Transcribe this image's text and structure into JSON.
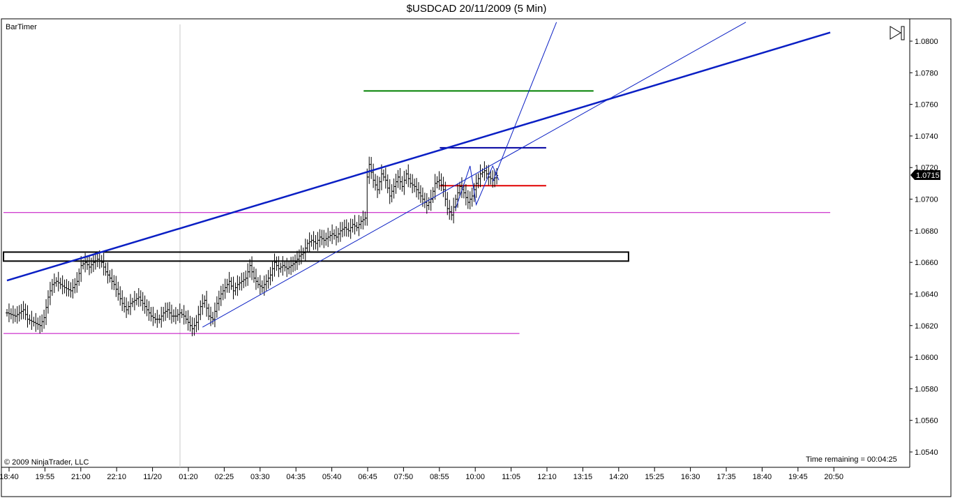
{
  "header": {
    "title": "$USDCAD  20/11/2009 (5 Min)"
  },
  "indicator": {
    "name": "BarTimer"
  },
  "footer": {
    "copyright": "© 2009 NinjaTrader, LLC",
    "time_remaining": "Time remaining = 00:04:25"
  },
  "colors": {
    "bar": "#000000",
    "trendline": "#0a1fc4",
    "support": "#c000c0",
    "green_level": "#008000",
    "blue_level": "#0000a0",
    "red_level": "#e00000",
    "box": "#000000",
    "grid": "#c8c8c8"
  },
  "chart_data": {
    "type": "ohlc",
    "title": "$USDCAD  20/11/2009 (5 Min)",
    "ylim": [
      1.053,
      1.0815
    ],
    "y_ticks": [
      "1.0540",
      "1.0560",
      "1.0580",
      "1.0600",
      "1.0620",
      "1.0640",
      "1.0660",
      "1.0680",
      "1.0700",
      "1.0720",
      "1.0740",
      "1.0760",
      "1.0780",
      "1.0800"
    ],
    "x_tick_labels": [
      "18:40",
      "19:55",
      "21:00",
      "22:10",
      "11/20",
      "01:20",
      "02:25",
      "03:30",
      "04:35",
      "05:40",
      "06:45",
      "07:50",
      "08:55",
      "10:00",
      "11:05",
      "12:10",
      "13:15",
      "14:20",
      "15:25",
      "16:30",
      "17:35",
      "18:40",
      "19:45",
      "20:50"
    ],
    "last_price": "1.0715",
    "close_path": [
      [
        0,
        1.0628
      ],
      [
        4,
        1.0626
      ],
      [
        8,
        1.063
      ],
      [
        10,
        1.0624
      ],
      [
        13,
        1.0622
      ],
      [
        16,
        1.062
      ],
      [
        18,
        1.0625
      ],
      [
        20,
        1.0638
      ],
      [
        22,
        1.0646
      ],
      [
        24,
        1.0648
      ],
      [
        26,
        1.0646
      ],
      [
        28,
        1.0644
      ],
      [
        31,
        1.0642
      ],
      [
        34,
        1.0648
      ],
      [
        36,
        1.0658
      ],
      [
        38,
        1.066
      ],
      [
        40,
        1.0657
      ],
      [
        42,
        1.066
      ],
      [
        44,
        1.0662
      ],
      [
        46,
        1.066
      ],
      [
        48,
        1.0654
      ],
      [
        50,
        1.065
      ],
      [
        52,
        1.0646
      ],
      [
        54,
        1.064
      ],
      [
        56,
        1.0634
      ],
      [
        58,
        1.063
      ],
      [
        60,
        1.0634
      ],
      [
        62,
        1.0636
      ],
      [
        64,
        1.0638
      ],
      [
        66,
        1.0634
      ],
      [
        68,
        1.063
      ],
      [
        70,
        1.0626
      ],
      [
        72,
        1.0624
      ],
      [
        74,
        1.0624
      ],
      [
        76,
        1.0628
      ],
      [
        78,
        1.063
      ],
      [
        80,
        1.0626
      ],
      [
        82,
        1.0626
      ],
      [
        84,
        1.0628
      ],
      [
        86,
        1.0626
      ],
      [
        88,
        1.0622
      ],
      [
        90,
        1.0618
      ],
      [
        92,
        1.0622
      ],
      [
        94,
        1.0632
      ],
      [
        96,
        1.0636
      ],
      [
        98,
        1.0626
      ],
      [
        100,
        1.0624
      ],
      [
        102,
        1.0634
      ],
      [
        104,
        1.064
      ],
      [
        106,
        1.0644
      ],
      [
        108,
        1.0648
      ],
      [
        110,
        1.0642
      ],
      [
        112,
        1.0646
      ],
      [
        114,
        1.0648
      ],
      [
        116,
        1.065
      ],
      [
        118,
        1.0658
      ],
      [
        120,
        1.065
      ],
      [
        122,
        1.0646
      ],
      [
        124,
        1.0644
      ],
      [
        126,
        1.0648
      ],
      [
        128,
        1.0652
      ],
      [
        130,
        1.066
      ],
      [
        132,
        1.0656
      ],
      [
        134,
        1.0658
      ],
      [
        136,
        1.0656
      ],
      [
        138,
        1.0658
      ],
      [
        140,
        1.066
      ],
      [
        142,
        1.0664
      ],
      [
        144,
        1.0666
      ],
      [
        146,
        1.0672
      ],
      [
        148,
        1.0674
      ],
      [
        150,
        1.0672
      ],
      [
        152,
        1.0676
      ],
      [
        154,
        1.0674
      ],
      [
        156,
        1.0676
      ],
      [
        158,
        1.0678
      ],
      [
        160,
        1.0676
      ],
      [
        162,
        1.068
      ],
      [
        164,
        1.0682
      ],
      [
        166,
        1.068
      ],
      [
        168,
        1.0684
      ],
      [
        170,
        1.0682
      ],
      [
        172,
        1.0686
      ],
      [
        174,
        1.0688
      ],
      [
        175,
        1.0714
      ],
      [
        176,
        1.0722
      ],
      [
        178,
        1.0712
      ],
      [
        180,
        1.0706
      ],
      [
        182,
        1.0716
      ],
      [
        184,
        1.0712
      ],
      [
        186,
        1.0702
      ],
      [
        188,
        1.0708
      ],
      [
        190,
        1.0714
      ],
      [
        192,
        1.0708
      ],
      [
        194,
        1.0716
      ],
      [
        196,
        1.071
      ],
      [
        198,
        1.0708
      ],
      [
        200,
        1.0704
      ],
      [
        202,
        1.07
      ],
      [
        204,
        1.0696
      ],
      [
        206,
        1.07
      ],
      [
        208,
        1.071
      ],
      [
        210,
        1.0712
      ],
      [
        212,
        1.0706
      ],
      [
        214,
        1.0694
      ],
      [
        216,
        1.069
      ],
      [
        218,
        1.07
      ],
      [
        220,
        1.0708
      ],
      [
        222,
        1.0704
      ],
      [
        224,
        1.0698
      ],
      [
        226,
        1.0702
      ],
      [
        228,
        1.071
      ],
      [
        230,
        1.0716
      ],
      [
        232,
        1.0718
      ],
      [
        234,
        1.0714
      ],
      [
        236,
        1.0712
      ],
      [
        238,
        1.0715
      ]
    ],
    "horizontal_levels": [
      {
        "color": "green",
        "price": 1.07685,
        "bar_from": 175,
        "bar_to": 285
      },
      {
        "color": "blue",
        "price": 1.07325,
        "bar_from": 212,
        "bar_to": 262
      },
      {
        "color": "red",
        "price": 1.07085,
        "bar_from": 212,
        "bar_to": 262
      },
      {
        "color": "magenta",
        "price": 1.06915,
        "bar_from": 0,
        "bar_to": 400
      },
      {
        "color": "magenta",
        "price": 1.0615,
        "bar_from": 0,
        "bar_to": 249
      }
    ],
    "zone_box": {
      "price_top": 1.06665,
      "price_bottom": 1.06608,
      "bar_from": 0,
      "bar_to": 302
    },
    "trendlines": [
      {
        "weight": "thick",
        "from": [
          0,
          1.06485
        ],
        "to": [
          400,
          1.08055
        ]
      },
      {
        "weight": "thin",
        "from": [
          95,
          1.0619
        ],
        "to": [
          359,
          1.0812
        ]
      },
      {
        "weight": "thin",
        "from": [
          236,
          1.0711
        ],
        "to": [
          267,
          1.0812
        ]
      }
    ],
    "zigzag": [
      [
        218,
        1.0694
      ],
      [
        225,
        1.0721
      ],
      [
        228,
        1.06965
      ],
      [
        236,
        1.0721
      ],
      [
        239,
        1.0712
      ]
    ]
  }
}
